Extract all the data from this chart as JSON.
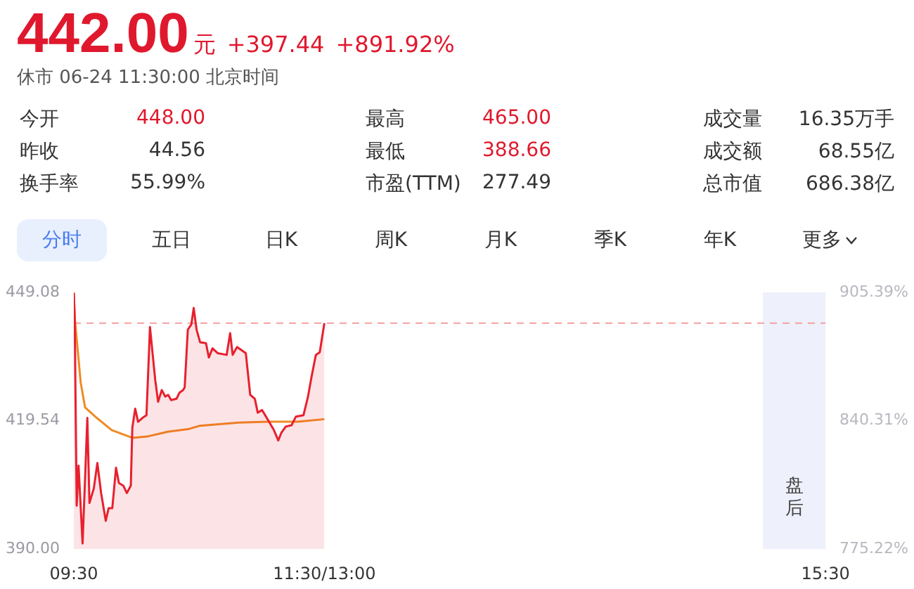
{
  "chart_data": [
    {
      "type": "other",
      "title": "442.00",
      "subtitle": "休市 06-24 11:30:00 北京时间",
      "annotations": [
        "元",
        "+397.44",
        "+891.92%",
        "今开",
        "448.00",
        "最高",
        "465.00",
        "成交量",
        "16.35万手",
        "昨收",
        "44.56",
        "最低",
        "388.66",
        "成交额",
        "68.55亿",
        "换手率",
        "55.99%",
        "市盈(TTM)",
        "277.49",
        "总市值",
        "686.38亿",
        "分时",
        "五日",
        "日K",
        "周K",
        "月K",
        "季K",
        "年K",
        "更多"
      ]
    },
    {
      "type": "line",
      "xlim": [
        9.5,
        15.5
      ],
      "xticks": [
        {
          "value": 9.5,
          "label": "09:30"
        },
        {
          "value": 11.5,
          "label": "11:30/13:00"
        },
        {
          "value": 15.5,
          "label": "15:30"
        }
      ],
      "ylim": [
        390,
        449.08
      ],
      "yticks": [
        {
          "value": 390,
          "label": "390.00"
        },
        {
          "value": 419.54,
          "label": "419.54"
        },
        {
          "value": 449.08,
          "label": "449.08"
        }
      ],
      "y2lim": [
        775.22,
        905.39
      ],
      "y2ticks": [
        {
          "value": 775.22,
          "label": "775.22%"
        },
        {
          "value": 840.31,
          "label": "840.31%"
        },
        {
          "value": 905.39,
          "label": "905.39%"
        }
      ],
      "grid": false,
      "legend": false,
      "marker": "none",
      "ref_lines": [
        {
          "axis": "y",
          "value": 442,
          "color": "#f4a0a0",
          "line_style": "dashed"
        }
      ],
      "bands": [
        {
          "axis": "x",
          "from": 15,
          "to": 15.5,
          "label": "盘后",
          "color": "#eef0fb"
        }
      ],
      "series": [
        {
          "type": "area",
          "color": "#e8202e",
          "x": [
            9.5,
            9.507,
            9.523,
            9.538,
            9.57,
            9.59,
            9.608,
            9.625,
            9.66,
            9.688,
            9.718,
            9.755,
            9.778,
            9.807,
            9.837,
            9.86,
            9.895,
            9.923,
            9.955,
            9.967,
            9.99,
            10.013,
            10.048,
            10.08,
            10.108,
            10.15,
            10.173,
            10.202,
            10.23,
            10.253,
            10.277,
            10.32,
            10.343,
            10.372,
            10.385,
            10.41,
            10.438,
            10.457,
            10.48,
            10.508,
            10.555,
            10.578,
            10.607,
            10.648,
            10.72,
            10.748,
            10.768,
            10.803,
            10.873,
            10.908,
            10.945,
            10.968,
            11.003,
            11.05,
            11.097,
            11.132,
            11.157,
            11.192,
            11.238,
            11.273,
            11.333,
            11.368,
            11.398,
            11.432,
            11.463,
            11.5
          ],
          "values": [
            449,
            443.4,
            400,
            409.2,
            391.3,
            406.3,
            420.2,
            400.6,
            404,
            409.8,
            402.9,
            396.5,
            399.4,
            399.4,
            408.7,
            405.2,
            404.6,
            402.9,
            404.6,
            417.9,
            422.3,
            419.3,
            420.2,
            420.8,
            441.1,
            428.9,
            423.9,
            426.6,
            425.1,
            425.5,
            424.3,
            424.6,
            426,
            426.6,
            427.2,
            440.5,
            441.7,
            445.5,
            440.5,
            437.6,
            437.4,
            434.1,
            436.2,
            435.1,
            434.7,
            439.7,
            434.7,
            436.5,
            435.1,
            425.5,
            424.6,
            421.4,
            422,
            419.7,
            417.4,
            415,
            416.8,
            418.2,
            418.5,
            420.5,
            420.8,
            424.9,
            429.7,
            434.7,
            435.3,
            442
          ]
        },
        {
          "type": "line",
          "color": "#f08a24",
          "x": [
            9.5,
            9.507,
            9.555,
            9.59,
            9.683,
            9.802,
            9.967,
            10.085,
            10.25,
            10.413,
            10.508,
            10.815,
            11.05,
            11.287,
            11.5
          ],
          "values": [
            449,
            443.4,
            428.3,
            422.6,
            420.2,
            417.4,
            415.6,
            415.9,
            417,
            417.6,
            418.4,
            419.1,
            419.3,
            419.3,
            419.9
          ]
        }
      ]
    }
  ]
}
